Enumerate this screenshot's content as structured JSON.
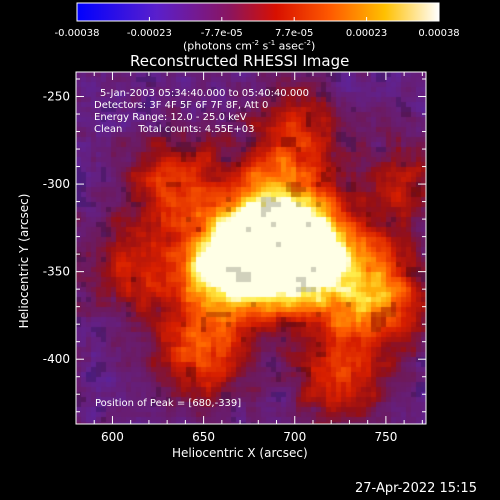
{
  "colorbar": {
    "ticks": [
      "-0.00038",
      "-0.00023",
      "-7.7e-05",
      "7.7e-05",
      "0.00023",
      "0.00038"
    ],
    "units_prefix": "(photons cm",
    "units_exp1": "-2",
    "units_mid": " s",
    "units_exp2": "-1",
    "units_mid2": " asec",
    "units_exp3": "-2",
    "units_suffix": ")",
    "colormap": "rainbow-to-white (blue, purple, red, orange, yellow, white)"
  },
  "title": "Reconstructed RHESSI Image",
  "annotations": {
    "time": "5-Jan-2003 05:34:40.000 to 05:40:40.000",
    "detectors": "Detectors: 3F 4F 5F 6F 7F 8F, Att 0",
    "energy": "Energy Range: 12.0 - 25.0 keV",
    "clean": "Clean     Total counts: 4.55E+03",
    "peak": "Position of Peak = [680,-339]"
  },
  "axes": {
    "xlabel": "Heliocentric X (arcsec)",
    "ylabel": "Heliocentric Y (arcsec)",
    "xticks": [
      "600",
      "650",
      "700",
      "750"
    ],
    "yticks": [
      "-250",
      "-300",
      "-350",
      "-400"
    ],
    "xrange": [
      580,
      772
    ],
    "yrange": [
      -437,
      -236
    ]
  },
  "timestamp": "27-Apr-2022 15:15",
  "chart_data": {
    "type": "heatmap",
    "title": "Reconstructed RHESSI Image",
    "xlabel": "Heliocentric X (arcsec)",
    "ylabel": "Heliocentric Y (arcsec)",
    "xlim": [
      580,
      772
    ],
    "ylim": [
      -437,
      -236
    ],
    "colorbar_range": [
      -0.00038,
      0.00038
    ],
    "peak": [
      680,
      -339
    ],
    "sources": [
      {
        "x": 680,
        "y": -339,
        "level": 1.0
      },
      {
        "x": 662,
        "y": -348,
        "level": 0.92
      },
      {
        "x": 690,
        "y": -315,
        "level": 0.75
      },
      {
        "x": 705,
        "y": -350,
        "level": 0.7
      },
      {
        "x": 745,
        "y": -365,
        "level": 0.72
      },
      {
        "x": 715,
        "y": -335,
        "level": 0.62
      },
      {
        "x": 650,
        "y": -395,
        "level": 0.55
      },
      {
        "x": 635,
        "y": -300,
        "level": 0.5
      },
      {
        "x": 725,
        "y": -410,
        "level": 0.45
      },
      {
        "x": 610,
        "y": -350,
        "level": 0.35
      },
      {
        "x": 700,
        "y": -272,
        "level": 0.42
      },
      {
        "x": 760,
        "y": -300,
        "level": 0.3
      }
    ]
  }
}
